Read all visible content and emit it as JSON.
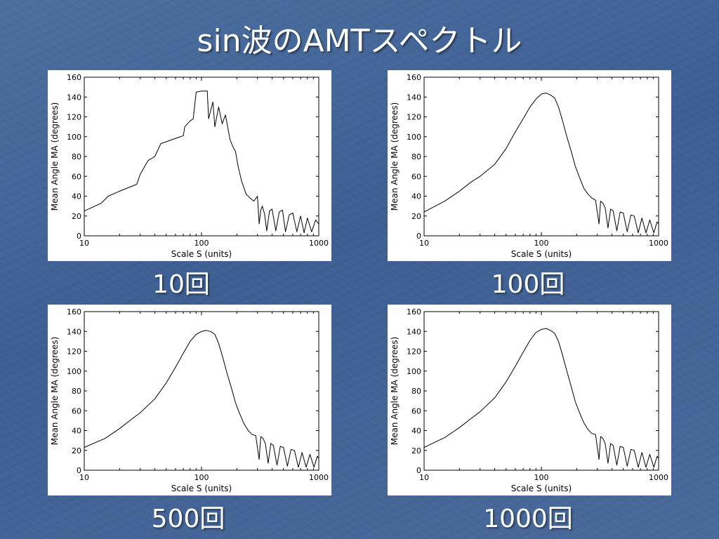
{
  "slide": {
    "title": "sin波のAMTスペクトル",
    "colors": {
      "background": "#45659a",
      "text": "#ffffff",
      "plot_bg": "#ffffff",
      "line": "#000000"
    }
  },
  "chart_data": [
    {
      "type": "line",
      "caption": "10回",
      "xlabel": "Scale S (units)",
      "ylabel": "Mean Angle MA (degrees)",
      "xscale": "log",
      "xlim": [
        10,
        1000
      ],
      "ylim": [
        0,
        160
      ],
      "xticks": [
        "10",
        "100",
        "1000"
      ],
      "yticks": [
        "0",
        "20",
        "40",
        "60",
        "80",
        "100",
        "120",
        "140",
        "160"
      ],
      "series": [
        {
          "x": [
            10,
            14,
            16,
            20,
            28,
            30,
            35,
            40,
            45,
            70,
            72,
            80,
            85,
            90,
            100,
            112,
            115,
            125,
            130,
            140,
            150,
            160,
            175,
            185,
            195,
            205,
            220,
            240,
            260,
            280,
            300,
            310,
            320,
            330,
            345,
            360,
            380,
            400,
            430,
            460,
            490,
            520,
            560,
            600,
            650,
            700,
            750,
            800,
            870,
            940,
            1000
          ],
          "y": [
            25,
            33,
            40,
            45,
            52,
            62,
            76,
            80,
            93,
            101,
            110,
            116,
            118,
            145,
            146,
            146,
            118,
            135,
            110,
            130,
            113,
            122,
            97,
            90,
            85,
            70,
            55,
            42,
            38,
            35,
            40,
            12,
            26,
            30,
            22,
            5,
            25,
            27,
            5,
            24,
            26,
            4,
            21,
            23,
            4,
            20,
            3,
            18,
            4,
            16,
            12
          ]
        }
      ]
    },
    {
      "type": "line",
      "caption": "100回",
      "xlabel": "Scale S (units)",
      "ylabel": "Mean Angle MA (degrees)",
      "xscale": "log",
      "xlim": [
        10,
        1000
      ],
      "ylim": [
        0,
        160
      ],
      "xticks": [
        "10",
        "100",
        "1000"
      ],
      "yticks": [
        "0",
        "20",
        "40",
        "60",
        "80",
        "100",
        "120",
        "140",
        "160"
      ],
      "series": [
        {
          "x": [
            10,
            15,
            20,
            25,
            30,
            40,
            50,
            60,
            70,
            80,
            90,
            100,
            110,
            120,
            130,
            140,
            150,
            165,
            180,
            195,
            210,
            230,
            250,
            270,
            290,
            310,
            320,
            335,
            350,
            370,
            390,
            410,
            440,
            470,
            500,
            540,
            580,
            620,
            670,
            720,
            780,
            840,
            910,
            970,
            1000
          ],
          "y": [
            24,
            35,
            45,
            54,
            60,
            72,
            88,
            105,
            118,
            130,
            138,
            143,
            144,
            142,
            139,
            130,
            118,
            100,
            85,
            70,
            60,
            48,
            42,
            38,
            36,
            12,
            35,
            33,
            28,
            8,
            27,
            25,
            5,
            24,
            23,
            4,
            21,
            20,
            3,
            18,
            3,
            16,
            3,
            14,
            12
          ]
        }
      ]
    },
    {
      "type": "line",
      "caption": "500回",
      "xlabel": "Scale S (units)",
      "ylabel": "Mean Angle MA (degrees)",
      "xscale": "log",
      "xlim": [
        10,
        1000
      ],
      "ylim": [
        0,
        160
      ],
      "xticks": [
        "10",
        "100",
        "1000"
      ],
      "yticks": [
        "0",
        "20",
        "40",
        "60",
        "80",
        "100",
        "120",
        "140",
        "160"
      ],
      "series": [
        {
          "x": [
            10,
            15,
            20,
            25,
            30,
            40,
            50,
            60,
            70,
            80,
            90,
            100,
            110,
            120,
            130,
            140,
            150,
            165,
            180,
            195,
            210,
            230,
            250,
            270,
            290,
            310,
            320,
            335,
            350,
            370,
            390,
            410,
            440,
            470,
            500,
            540,
            580,
            620,
            670,
            720,
            780,
            840,
            910,
            970,
            1000
          ],
          "y": [
            23,
            32,
            42,
            51,
            58,
            72,
            88,
            104,
            118,
            130,
            137,
            140,
            141,
            140,
            137,
            128,
            116,
            98,
            83,
            68,
            58,
            47,
            40,
            36,
            35,
            11,
            34,
            32,
            27,
            7,
            27,
            25,
            5,
            24,
            23,
            4,
            21,
            20,
            3,
            18,
            3,
            16,
            3,
            14,
            12
          ]
        }
      ]
    },
    {
      "type": "line",
      "caption": "1000回",
      "xlabel": "Scale S (units)",
      "ylabel": "Mean Angle MA (degrees)",
      "xscale": "log",
      "xlim": [
        10,
        1000
      ],
      "ylim": [
        0,
        160
      ],
      "xticks": [
        "10",
        "100",
        "1000"
      ],
      "yticks": [
        "0",
        "20",
        "40",
        "60",
        "80",
        "100",
        "120",
        "140",
        "160"
      ],
      "series": [
        {
          "x": [
            10,
            15,
            20,
            25,
            30,
            40,
            50,
            60,
            70,
            80,
            90,
            100,
            110,
            120,
            130,
            140,
            150,
            165,
            180,
            195,
            210,
            230,
            250,
            270,
            290,
            310,
            320,
            335,
            350,
            370,
            390,
            410,
            440,
            470,
            500,
            540,
            580,
            620,
            670,
            720,
            780,
            840,
            910,
            970,
            1000
          ],
          "y": [
            23,
            33,
            43,
            52,
            59,
            73,
            89,
            105,
            119,
            131,
            139,
            142,
            143,
            141,
            138,
            130,
            118,
            100,
            84,
            69,
            59,
            48,
            41,
            37,
            36,
            11,
            34,
            32,
            27,
            7,
            27,
            25,
            5,
            24,
            23,
            4,
            21,
            20,
            3,
            18,
            3,
            16,
            3,
            14,
            12
          ]
        }
      ]
    }
  ]
}
